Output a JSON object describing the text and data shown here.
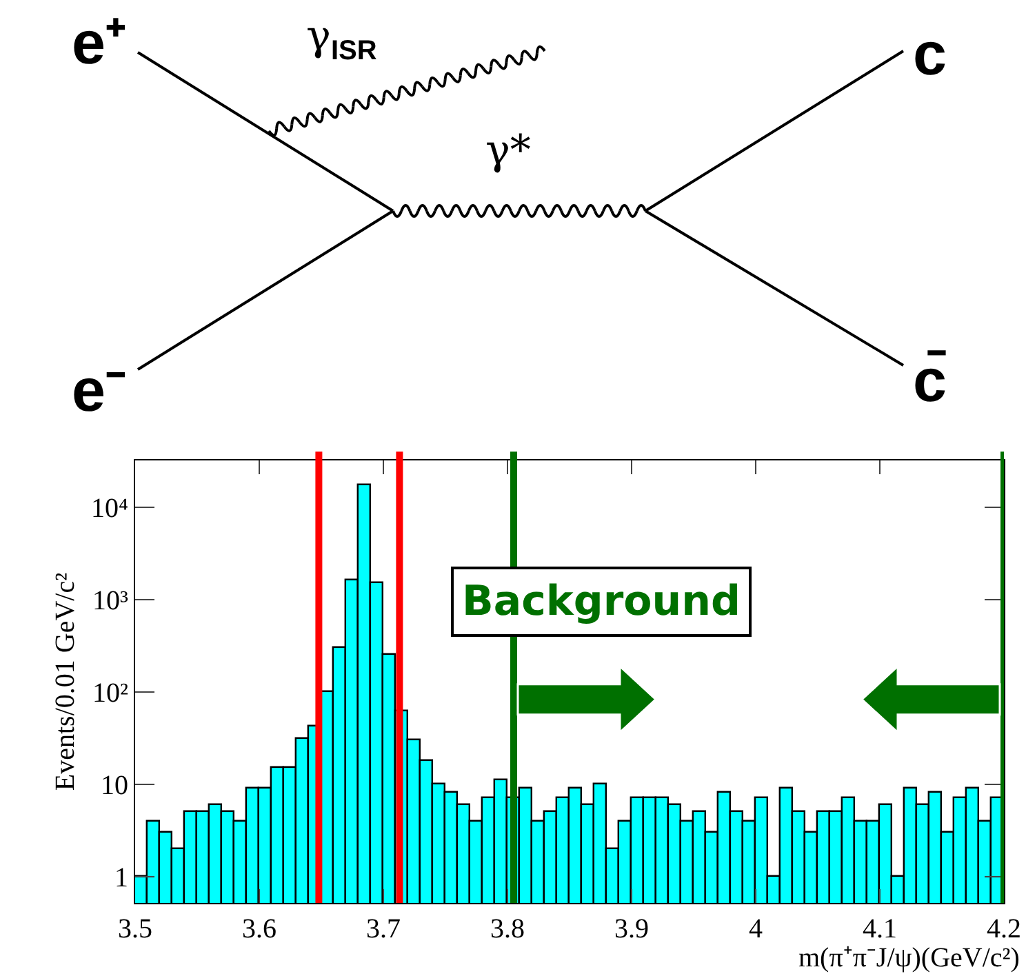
{
  "chart_data": [
    {
      "type": "other",
      "annotations": [
        "e⁺",
        "γ$_{ISR}$",
        "γ*",
        "e⁻",
        "c",
        "c̄"
      ]
    },
    {
      "type": "histogram",
      "color": "#00ffff",
      "bins": [
        3.5,
        3.51,
        3.52,
        3.53,
        3.54,
        3.55,
        3.56,
        3.57,
        3.58,
        3.59,
        3.6,
        3.61,
        3.62,
        3.63,
        3.64,
        3.65,
        3.66,
        3.67,
        3.68,
        3.69,
        3.7,
        3.71,
        3.72,
        3.73,
        3.74,
        3.75,
        3.76,
        3.77,
        3.78,
        3.79,
        3.8,
        3.81,
        3.82,
        3.83,
        3.84,
        3.85,
        3.86,
        3.87,
        3.88,
        3.89,
        3.9,
        3.91,
        3.92,
        3.93,
        3.94,
        3.95,
        3.96,
        3.97,
        3.98,
        3.99,
        4.0,
        4.01,
        4.02,
        4.03,
        4.04,
        4.05,
        4.06,
        4.07,
        4.08,
        4.09,
        4.1,
        4.11,
        4.12,
        4.13,
        4.14,
        4.15,
        4.16,
        4.17,
        4.18,
        4.19,
        4.2
      ],
      "values": [
        1,
        4,
        3,
        2,
        5,
        5,
        6,
        5,
        4,
        9,
        9,
        15,
        15,
        31,
        42,
        100,
        300,
        1600,
        17000,
        1500,
        250,
        61,
        30,
        18,
        10,
        8,
        6,
        4,
        7,
        11,
        7,
        9,
        4,
        5,
        7,
        9,
        6,
        10,
        2,
        4,
        7,
        7,
        7,
        6,
        4,
        5,
        3,
        8,
        5,
        4,
        7,
        1,
        9,
        5,
        3,
        5,
        5,
        7,
        4,
        4,
        6,
        1,
        9,
        6,
        8,
        3,
        7,
        9,
        4,
        7
      ],
      "xlim": [
        3.5,
        4.2
      ],
      "xticks": [
        3.5,
        3.6,
        3.7,
        3.8,
        3.9,
        4,
        4.1,
        4.2
      ],
      "ylim": [
        0.52,
        32000
      ],
      "log": true,
      "yticks": [
        1,
        10,
        {
          "value": 100,
          "label": "10²"
        },
        {
          "value": 1000,
          "label": "10³"
        },
        {
          "value": 10000,
          "label": "10⁴"
        }
      ],
      "xlabel": "m(π⁺π⁻J/ψ)(GeV/c²)",
      "ylabel": "Events/0.01 GeV/c²",
      "ref_lines": [
        {
          "axis": "x",
          "value": 3.648,
          "color": "#ff0000"
        },
        {
          "axis": "x",
          "value": 3.713,
          "color": "#ff0000"
        },
        {
          "axis": "x",
          "value": 3.805,
          "color": "#007000"
        },
        {
          "axis": "x",
          "value": 4.2,
          "color": "#007000"
        }
      ],
      "annotations": [
        "Background"
      ]
    }
  ]
}
